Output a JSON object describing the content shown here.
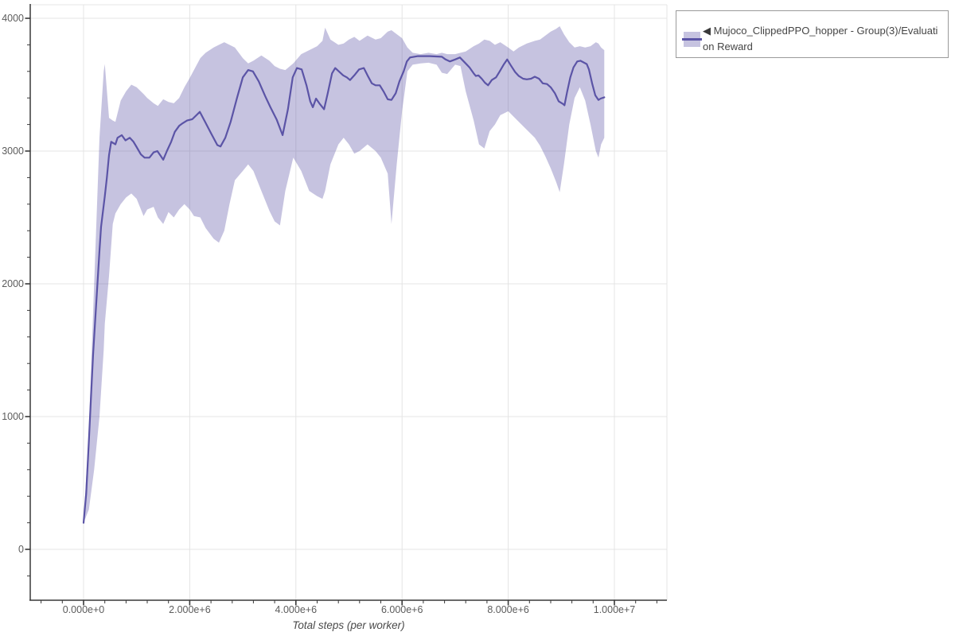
{
  "legend": {
    "arrow_icon": "◀",
    "series_label": "Mujoco_ClippedPPO_hopper - Group(3)/Evaluation Reward"
  },
  "chart_data": {
    "type": "line_with_confidence_band",
    "title": "",
    "xlabel": "Total steps (per worker)",
    "ylabel": "",
    "grid": true,
    "legend_position": "outside-top-right",
    "xlim": [
      -1000000,
      11000000
    ],
    "ylim": [
      -385,
      4100
    ],
    "x_ticks": [
      {
        "value": 0,
        "label": "0.000e+0"
      },
      {
        "value": 2000000,
        "label": "2.000e+6"
      },
      {
        "value": 4000000,
        "label": "4.000e+6"
      },
      {
        "value": 6000000,
        "label": "6.000e+6"
      },
      {
        "value": 8000000,
        "label": "8.000e+6"
      },
      {
        "value": 10000000,
        "label": "1.000e+7"
      }
    ],
    "y_ticks": [
      {
        "value": 0,
        "label": "0"
      },
      {
        "value": 1000,
        "label": "1000"
      },
      {
        "value": 2000,
        "label": "2000"
      },
      {
        "value": 3000,
        "label": "3000"
      },
      {
        "value": 4000,
        "label": "4000"
      }
    ],
    "x_minor_tick_step": 400000,
    "y_minor_tick_step": 200,
    "colors": {
      "grid": "#e4e4e4",
      "axis": "#383838",
      "tick_label": "#5c5c5c",
      "axis_title": "#4a4a4a",
      "background": "#ffffff"
    },
    "series": [
      {
        "name": "Mujoco_ClippedPPO_hopper - Group(3)/Evaluation Reward",
        "line_color": "#5b54a6",
        "band_color": "rgba(91,84,166,0.35)",
        "points": [
          [
            0,
            200
          ],
          [
            50000,
            420
          ],
          [
            100000,
            820
          ],
          [
            150000,
            1230
          ],
          [
            180000,
            1470
          ],
          [
            240000,
            1860
          ],
          [
            300000,
            2250
          ],
          [
            330000,
            2430
          ],
          [
            400000,
            2660
          ],
          [
            440000,
            2800
          ],
          [
            480000,
            2970
          ],
          [
            520000,
            3070
          ],
          [
            600000,
            3050
          ],
          [
            640000,
            3100
          ],
          [
            720000,
            3120
          ],
          [
            790000,
            3080
          ],
          [
            870000,
            3100
          ],
          [
            940000,
            3070
          ],
          [
            1000000,
            3030
          ],
          [
            1080000,
            2975
          ],
          [
            1150000,
            2950
          ],
          [
            1240000,
            2950
          ],
          [
            1320000,
            2990
          ],
          [
            1390000,
            3000
          ],
          [
            1450000,
            2965
          ],
          [
            1500000,
            2935
          ],
          [
            1570000,
            3000
          ],
          [
            1650000,
            3070
          ],
          [
            1720000,
            3145
          ],
          [
            1800000,
            3190
          ],
          [
            1870000,
            3210
          ],
          [
            1950000,
            3230
          ],
          [
            2050000,
            3240
          ],
          [
            2190000,
            3295
          ],
          [
            2290000,
            3220
          ],
          [
            2400000,
            3135
          ],
          [
            2520000,
            3045
          ],
          [
            2580000,
            3035
          ],
          [
            2670000,
            3100
          ],
          [
            2770000,
            3220
          ],
          [
            2890000,
            3400
          ],
          [
            3000000,
            3555
          ],
          [
            3100000,
            3610
          ],
          [
            3190000,
            3600
          ],
          [
            3300000,
            3525
          ],
          [
            3420000,
            3415
          ],
          [
            3520000,
            3330
          ],
          [
            3640000,
            3235
          ],
          [
            3750000,
            3120
          ],
          [
            3850000,
            3315
          ],
          [
            3940000,
            3555
          ],
          [
            4020000,
            3625
          ],
          [
            4110000,
            3615
          ],
          [
            4200000,
            3495
          ],
          [
            4270000,
            3375
          ],
          [
            4320000,
            3330
          ],
          [
            4380000,
            3395
          ],
          [
            4450000,
            3355
          ],
          [
            4530000,
            3315
          ],
          [
            4600000,
            3435
          ],
          [
            4680000,
            3585
          ],
          [
            4740000,
            3625
          ],
          [
            4810000,
            3600
          ],
          [
            4890000,
            3570
          ],
          [
            4960000,
            3555
          ],
          [
            5020000,
            3535
          ],
          [
            5100000,
            3570
          ],
          [
            5190000,
            3615
          ],
          [
            5280000,
            3625
          ],
          [
            5350000,
            3570
          ],
          [
            5430000,
            3510
          ],
          [
            5500000,
            3495
          ],
          [
            5580000,
            3495
          ],
          [
            5650000,
            3450
          ],
          [
            5730000,
            3390
          ],
          [
            5800000,
            3385
          ],
          [
            5880000,
            3435
          ],
          [
            5950000,
            3525
          ],
          [
            6030000,
            3600
          ],
          [
            6090000,
            3675
          ],
          [
            6150000,
            3705
          ],
          [
            6300000,
            3715
          ],
          [
            6520000,
            3715
          ],
          [
            6750000,
            3710
          ],
          [
            6820000,
            3690
          ],
          [
            6900000,
            3675
          ],
          [
            7000000,
            3690
          ],
          [
            7090000,
            3705
          ],
          [
            7200000,
            3660
          ],
          [
            7270000,
            3630
          ],
          [
            7350000,
            3585
          ],
          [
            7390000,
            3565
          ],
          [
            7440000,
            3570
          ],
          [
            7500000,
            3545
          ],
          [
            7560000,
            3515
          ],
          [
            7620000,
            3495
          ],
          [
            7690000,
            3535
          ],
          [
            7770000,
            3555
          ],
          [
            7840000,
            3600
          ],
          [
            7920000,
            3655
          ],
          [
            7980000,
            3690
          ],
          [
            8050000,
            3645
          ],
          [
            8130000,
            3595
          ],
          [
            8200000,
            3565
          ],
          [
            8280000,
            3545
          ],
          [
            8350000,
            3540
          ],
          [
            8430000,
            3545
          ],
          [
            8500000,
            3560
          ],
          [
            8580000,
            3545
          ],
          [
            8650000,
            3510
          ],
          [
            8730000,
            3505
          ],
          [
            8800000,
            3480
          ],
          [
            8880000,
            3435
          ],
          [
            8950000,
            3375
          ],
          [
            9030000,
            3355
          ],
          [
            9060000,
            3345
          ],
          [
            9110000,
            3445
          ],
          [
            9170000,
            3555
          ],
          [
            9230000,
            3630
          ],
          [
            9300000,
            3675
          ],
          [
            9360000,
            3680
          ],
          [
            9410000,
            3670
          ],
          [
            9480000,
            3655
          ],
          [
            9520000,
            3615
          ],
          [
            9580000,
            3510
          ],
          [
            9640000,
            3420
          ],
          [
            9700000,
            3385
          ],
          [
            9740000,
            3395
          ],
          [
            9810000,
            3405
          ]
        ],
        "band": [
          [
            0,
            200,
            200
          ],
          [
            100000,
            300,
            900
          ],
          [
            200000,
            600,
            2000
          ],
          [
            300000,
            1000,
            3100
          ],
          [
            380000,
            1500,
            3600
          ],
          [
            400000,
            1700,
            3655
          ],
          [
            480000,
            2060,
            3250
          ],
          [
            550000,
            2450,
            3230
          ],
          [
            600000,
            2530,
            3220
          ],
          [
            700000,
            2600,
            3380
          ],
          [
            800000,
            2650,
            3450
          ],
          [
            900000,
            2680,
            3500
          ],
          [
            1000000,
            2640,
            3480
          ],
          [
            1130000,
            2510,
            3430
          ],
          [
            1200000,
            2560,
            3400
          ],
          [
            1320000,
            2580,
            3360
          ],
          [
            1400000,
            2500,
            3340
          ],
          [
            1500000,
            2450,
            3390
          ],
          [
            1600000,
            2540,
            3370
          ],
          [
            1700000,
            2500,
            3360
          ],
          [
            1800000,
            2560,
            3400
          ],
          [
            1900000,
            2600,
            3480
          ],
          [
            2000000,
            2560,
            3550
          ],
          [
            2080000,
            2510,
            3610
          ],
          [
            2200000,
            2500,
            3700
          ],
          [
            2300000,
            2420,
            3740
          ],
          [
            2450000,
            2340,
            3780
          ],
          [
            2550000,
            2310,
            3800
          ],
          [
            2650000,
            2400,
            3820
          ],
          [
            2750000,
            2600,
            3800
          ],
          [
            2850000,
            2780,
            3780
          ],
          [
            3000000,
            2850,
            3700
          ],
          [
            3100000,
            2900,
            3660
          ],
          [
            3200000,
            2850,
            3680
          ],
          [
            3350000,
            2700,
            3720
          ],
          [
            3500000,
            2550,
            3680
          ],
          [
            3600000,
            2470,
            3640
          ],
          [
            3700000,
            2440,
            3620
          ],
          [
            3800000,
            2700,
            3610
          ],
          [
            3950000,
            2950,
            3660
          ],
          [
            4100000,
            2850,
            3730
          ],
          [
            4250000,
            2700,
            3760
          ],
          [
            4400000,
            2660,
            3790
          ],
          [
            4500000,
            2640,
            3830
          ],
          [
            4550000,
            2700,
            3930
          ],
          [
            4650000,
            2900,
            3840
          ],
          [
            4800000,
            3050,
            3800
          ],
          [
            4900000,
            3100,
            3810
          ],
          [
            5000000,
            3050,
            3840
          ],
          [
            5100000,
            2980,
            3860
          ],
          [
            5200000,
            3000,
            3830
          ],
          [
            5350000,
            3050,
            3870
          ],
          [
            5500000,
            3000,
            3840
          ],
          [
            5600000,
            2950,
            3850
          ],
          [
            5730000,
            2830,
            3900
          ],
          [
            5800000,
            2450,
            3910
          ],
          [
            5900000,
            2900,
            3880
          ],
          [
            6000000,
            3300,
            3850
          ],
          [
            6100000,
            3600,
            3780
          ],
          [
            6200000,
            3650,
            3740
          ],
          [
            6350000,
            3660,
            3730
          ],
          [
            6500000,
            3665,
            3740
          ],
          [
            6650000,
            3650,
            3730
          ],
          [
            6750000,
            3590,
            3740
          ],
          [
            6850000,
            3580,
            3730
          ],
          [
            7000000,
            3650,
            3730
          ],
          [
            7100000,
            3640,
            3740
          ],
          [
            7200000,
            3450,
            3750
          ],
          [
            7350000,
            3230,
            3790
          ],
          [
            7450000,
            3050,
            3810
          ],
          [
            7550000,
            3020,
            3840
          ],
          [
            7650000,
            3150,
            3830
          ],
          [
            7750000,
            3200,
            3800
          ],
          [
            7850000,
            3270,
            3820
          ],
          [
            8000000,
            3300,
            3780
          ],
          [
            8100000,
            3260,
            3750
          ],
          [
            8200000,
            3220,
            3780
          ],
          [
            8350000,
            3160,
            3810
          ],
          [
            8500000,
            3100,
            3830
          ],
          [
            8600000,
            3040,
            3840
          ],
          [
            8700000,
            2960,
            3870
          ],
          [
            8800000,
            2870,
            3900
          ],
          [
            8900000,
            2770,
            3920
          ],
          [
            8970000,
            2690,
            3940
          ],
          [
            9050000,
            2900,
            3880
          ],
          [
            9150000,
            3200,
            3820
          ],
          [
            9250000,
            3400,
            3780
          ],
          [
            9350000,
            3480,
            3790
          ],
          [
            9450000,
            3380,
            3780
          ],
          [
            9550000,
            3200,
            3790
          ],
          [
            9650000,
            3000,
            3820
          ],
          [
            9700000,
            2950,
            3810
          ],
          [
            9750000,
            3050,
            3780
          ],
          [
            9810000,
            3100,
            3760
          ]
        ]
      }
    ]
  }
}
